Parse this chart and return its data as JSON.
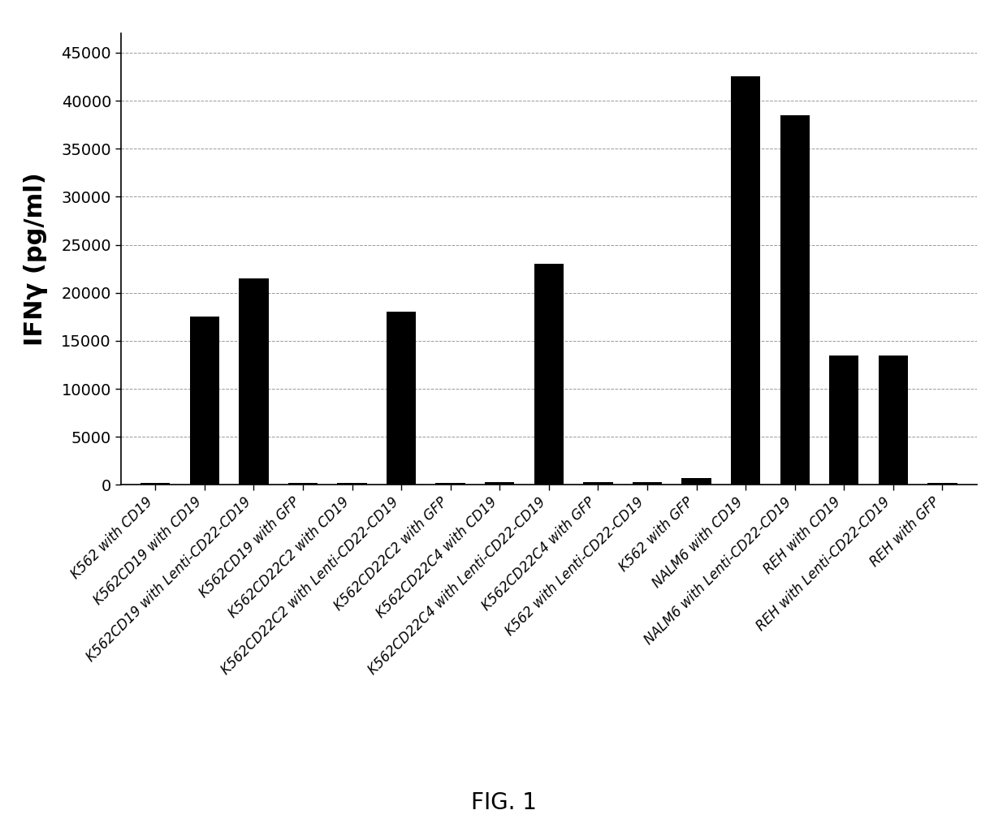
{
  "categories": [
    "K562 with CD19",
    "K562CD19 with CD19",
    "K562CD19 with Lenti-CD22-CD19",
    "K562CD19 with GFP",
    "K562CD22C2 with CD19",
    "K562CD22C2 with Lenti-CD22-CD19",
    "K562CD22C2 with GFP",
    "K562CD22C4 with CD19",
    "K562CD22C4 with Lenti-CD22-CD19",
    "K562CD22C4 with GFP",
    "K562 with Lenti-CD22-CD19",
    "K562 with GFP",
    "NALM6 with CD19",
    "NALM6 with Lenti-CD22-CD19",
    "REH with CD19",
    "REH with Lenti-CD22-CD19",
    "REH with GFP"
  ],
  "values": [
    200,
    17500,
    21500,
    200,
    200,
    18000,
    200,
    300,
    23000,
    300,
    300,
    700,
    42500,
    38500,
    13500,
    13500,
    200
  ],
  "bar_color": "#000000",
  "ylabel": "IFNγ (pg/ml)",
  "ylim": [
    0,
    47000
  ],
  "yticks": [
    0,
    5000,
    10000,
    15000,
    20000,
    25000,
    30000,
    35000,
    40000,
    45000
  ],
  "figure_caption": "FIG. 1",
  "background_color": "#ffffff",
  "grid_color": "#999999",
  "ylabel_fontsize": 22,
  "ytick_fontsize": 14,
  "xtick_fontsize": 12,
  "caption_fontsize": 20
}
